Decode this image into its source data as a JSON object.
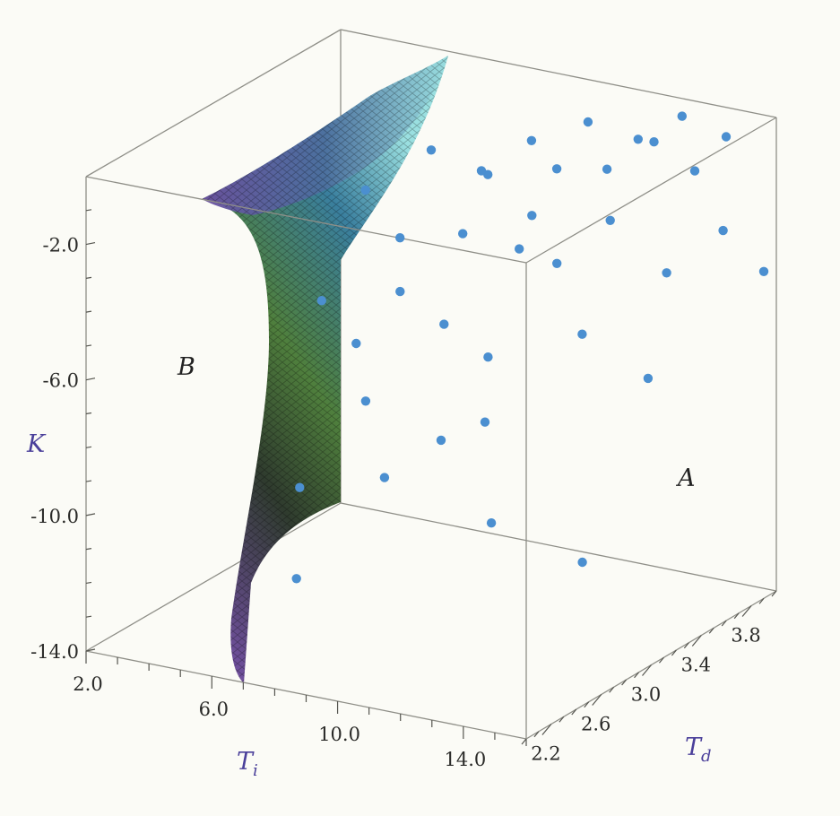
{
  "chart_data": {
    "type": "scatter3d",
    "x_axis": {
      "label": "T_i",
      "label_main": "T",
      "label_sub": "i",
      "ticks": [
        "2.0",
        "6.0",
        "10.0",
        "14.0"
      ],
      "range": [
        2,
        16
      ]
    },
    "y_axis": {
      "label": "T_d",
      "label_main": "T",
      "label_sub": "d",
      "ticks": [
        "2.2",
        "2.6",
        "3.0",
        "3.4",
        "3.8"
      ],
      "range": [
        2.0,
        4.0
      ]
    },
    "z_axis": {
      "label": "K",
      "label_main": "K",
      "ticks": [
        "-2.0",
        "-6.0",
        "-10.0",
        "-14.0"
      ],
      "range": [
        -14,
        0
      ]
    },
    "regions": [
      {
        "name": "A"
      },
      {
        "name": "B"
      }
    ],
    "surface": {
      "description": "stability boundary surface",
      "colors": [
        "#ffd0dc",
        "#6f4f9c",
        "#38306c",
        "#4f7f3d",
        "#3a7f9e",
        "#9adfe0"
      ]
    },
    "points_color": "#4b8fd0",
    "points": [
      {
        "x": 8.5,
        "y": 2.25,
        "z": -3.0
      },
      {
        "x": 8.5,
        "y": 2.6,
        "z": -0.5
      },
      {
        "x": 9.0,
        "y": 2.4,
        "z": -4.5
      },
      {
        "x": 9.2,
        "y": 2.7,
        "z": -2.0
      },
      {
        "x": 9.5,
        "y": 2.35,
        "z": -6.0
      },
      {
        "x": 10.0,
        "y": 2.5,
        "z": -3.0
      },
      {
        "x": 10.3,
        "y": 2.3,
        "z": -8.0
      },
      {
        "x": 10.8,
        "y": 2.8,
        "z": -1.8
      },
      {
        "x": 11.0,
        "y": 2.6,
        "z": -4.0
      },
      {
        "x": 11.2,
        "y": 2.9,
        "z": -0.2
      },
      {
        "x": 11.5,
        "y": 2.45,
        "z": -7.0
      },
      {
        "x": 11.8,
        "y": 3.0,
        "z": -2.5
      },
      {
        "x": 12.0,
        "y": 2.7,
        "z": -5.0
      },
      {
        "x": 12.2,
        "y": 3.2,
        "z": -0.5
      },
      {
        "x": 12.5,
        "y": 2.55,
        "z": -6.5
      },
      {
        "x": 12.6,
        "y": 3.1,
        "z": -3.0
      },
      {
        "x": 12.8,
        "y": 2.85,
        "z": -1.0
      },
      {
        "x": 13.0,
        "y": 3.4,
        "z": -0.8
      },
      {
        "x": 13.3,
        "y": 2.4,
        "z": -9.0
      },
      {
        "x": 13.5,
        "y": 3.3,
        "z": -2.0
      },
      {
        "x": 13.7,
        "y": 3.6,
        "z": -0.3
      },
      {
        "x": 14.0,
        "y": 2.95,
        "z": -4.5
      },
      {
        "x": 14.2,
        "y": 3.8,
        "z": -1.5
      },
      {
        "x": 14.5,
        "y": 3.5,
        "z": -3.8
      },
      {
        "x": 14.8,
        "y": 3.9,
        "z": -0.6
      },
      {
        "x": 15.0,
        "y": 2.7,
        "z": -10.5
      },
      {
        "x": 15.3,
        "y": 3.15,
        "z": -6.0
      },
      {
        "x": 15.5,
        "y": 3.7,
        "z": -2.8
      },
      {
        "x": 7.5,
        "y": 2.3,
        "z": -11.5
      },
      {
        "x": 9.8,
        "y": 3.2,
        "z": -1.0
      },
      {
        "x": 10.6,
        "y": 3.4,
        "z": -0.4
      },
      {
        "x": 11.6,
        "y": 3.6,
        "z": -0.1
      },
      {
        "x": 12.4,
        "y": 3.8,
        "z": -0.9
      },
      {
        "x": 13.2,
        "y": 3.95,
        "z": -0.4
      },
      {
        "x": 15.8,
        "y": 3.95,
        "z": -4.5
      },
      {
        "x": 8.0,
        "y": 2.2,
        "z": -8.5
      },
      {
        "x": 9.0,
        "y": 3.0,
        "z": -0.1
      }
    ]
  }
}
